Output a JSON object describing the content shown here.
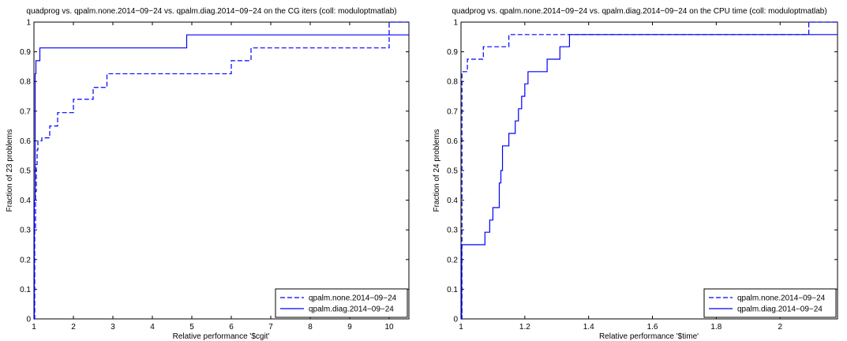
{
  "chart_data": [
    {
      "type": "line",
      "title": "quadprog vs. qpalm.none.2014−09−24 vs. qpalm.diag.2014−09−24 on the CG iters (coll: moduloptmatlab)",
      "xlabel": "Relative performance '$cgit'",
      "ylabel": "Fraction of 23 problems",
      "xlim": [
        1,
        10.5
      ],
      "ylim": [
        0,
        1
      ],
      "xticks": [
        1,
        2,
        3,
        4,
        5,
        6,
        7,
        8,
        9,
        10
      ],
      "xtick_labels": [
        "1",
        "2",
        "3",
        "4",
        "5",
        "6",
        "7",
        "8",
        "9",
        "10"
      ],
      "yticks": [
        0,
        0.1,
        0.2,
        0.3,
        0.4,
        0.5,
        0.6,
        0.7,
        0.8,
        0.9,
        1
      ],
      "ytick_labels": [
        "0",
        "0.1",
        "0.2",
        "0.3",
        "0.4",
        "0.5",
        "0.6",
        "0.7",
        "0.8",
        "0.9",
        "1"
      ],
      "legend_position": "bottom-right",
      "grid": false,
      "series": [
        {
          "name": "qpalm.none.2014−09−24",
          "style": "dashed",
          "color": "#0000ff",
          "x": [
            1,
            1.02,
            1.04,
            1.06,
            1.08,
            1.1,
            1.2,
            1.4,
            1.6,
            2.0,
            2.5,
            2.85,
            6.0,
            6.5,
            10.0,
            10.5
          ],
          "y": [
            0.0,
            0.3,
            0.43,
            0.52,
            0.57,
            0.6,
            0.61,
            0.65,
            0.695,
            0.74,
            0.78,
            0.826,
            0.87,
            0.913,
            1.0,
            1.0
          ]
        },
        {
          "name": "qpalm.diag.2014−09−24",
          "style": "solid",
          "color": "#0000ff",
          "x": [
            1,
            1.01,
            1.03,
            1.05,
            1.15,
            4.87,
            10.0,
            10.5
          ],
          "y": [
            0.0,
            0.4,
            0.826,
            0.87,
            0.913,
            0.957,
            0.957,
            0.957
          ]
        }
      ]
    },
    {
      "type": "line",
      "title": "quadprog vs. qpalm.none.2014−09−24 vs. qpalm.diag.2014−09−24 on the CPU time (coll: moduloptmatlab)",
      "xlabel": "Relative performance '$time'",
      "ylabel": "Fraction of 24 problems",
      "xlim": [
        1,
        2.18
      ],
      "ylim": [
        0,
        1
      ],
      "xticks": [
        1,
        1.2,
        1.4,
        1.6,
        1.8,
        2
      ],
      "xtick_labels": [
        "1",
        "1.2",
        "1.4",
        "1.6",
        "1.8",
        "2"
      ],
      "yticks": [
        0,
        0.1,
        0.2,
        0.3,
        0.4,
        0.5,
        0.6,
        0.7,
        0.8,
        0.9,
        1
      ],
      "ytick_labels": [
        "0",
        "0.1",
        "0.2",
        "0.3",
        "0.4",
        "0.5",
        "0.6",
        "0.7",
        "0.8",
        "0.9",
        "1"
      ],
      "legend_position": "bottom-right",
      "grid": false,
      "series": [
        {
          "name": "qpalm.none.2014−09−24",
          "style": "dashed",
          "color": "#0000ff",
          "x": [
            1,
            1.003,
            1.02,
            1.05,
            1.07,
            1.15,
            2.09,
            2.18
          ],
          "y": [
            0.0,
            0.833,
            0.875,
            0.875,
            0.917,
            0.958,
            1.0,
            1.0
          ]
        },
        {
          "name": "qpalm.diag.2014−09−24",
          "style": "solid",
          "color": "#0000ff",
          "x": [
            1,
            1.002,
            1.075,
            1.09,
            1.1,
            1.12,
            1.125,
            1.13,
            1.15,
            1.17,
            1.18,
            1.19,
            1.2,
            1.21,
            1.27,
            1.28,
            1.31,
            1.34,
            2.18
          ],
          "y": [
            0.0,
            0.25,
            0.292,
            0.333,
            0.375,
            0.458,
            0.5,
            0.583,
            0.625,
            0.667,
            0.708,
            0.75,
            0.792,
            0.833,
            0.875,
            0.875,
            0.917,
            0.958,
            0.958
          ]
        }
      ]
    }
  ]
}
